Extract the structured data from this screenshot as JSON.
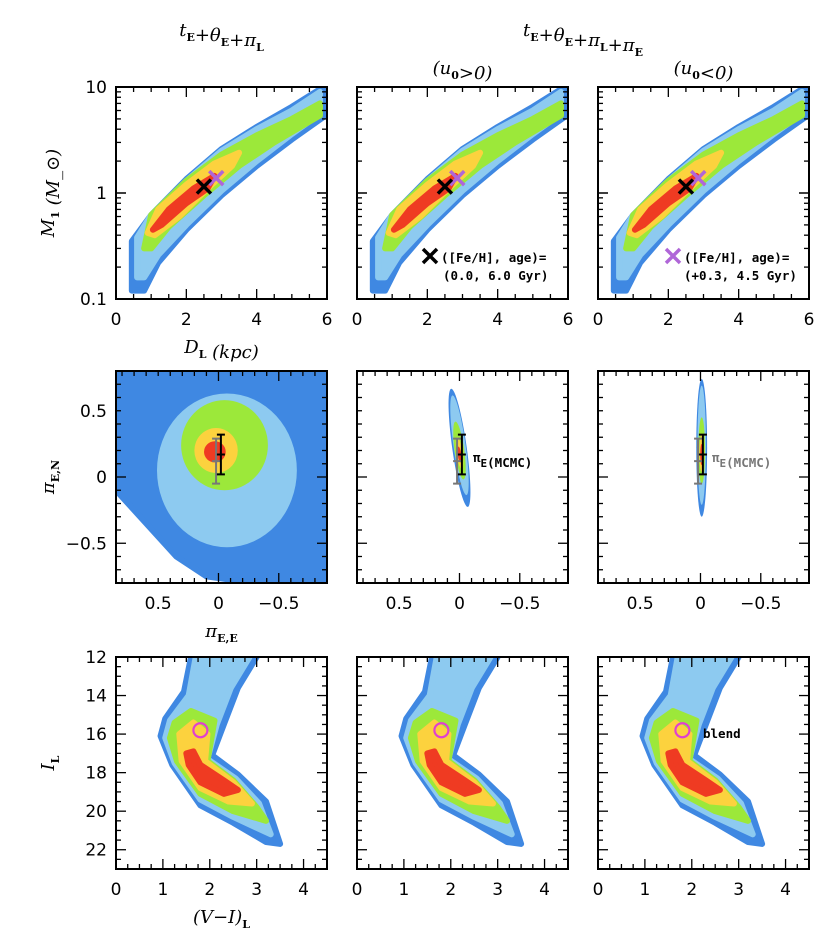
{
  "chart_data": {
    "type": "scatter",
    "colors": {
      "outer": "#3f88e2",
      "light": "#8dcaf0",
      "green": "#9ce83a",
      "yellow": "#fcd23e",
      "red": "#ef3b22",
      "black_marker": "#000000",
      "purple_marker": "#b066d8",
      "gray": "#777777",
      "blend_circle": "#e040d0"
    },
    "column_titles": [
      "t_E+θ_E+π_L",
      "t_E+θ_E+π_L+π_E"
    ],
    "column_subtitles": [
      "(u_0>0)",
      "(u_0<0)"
    ],
    "rows": [
      {
        "xlabel": "D_L (kpc)",
        "ylabel": "M_1 (M_⊙)",
        "xlim": [
          0,
          6
        ],
        "ylim": [
          0.1,
          10
        ],
        "yscale": "log",
        "xticks": [
          "0",
          "2",
          "4",
          "6"
        ],
        "yticks": [
          "0.1",
          "1",
          "10"
        ]
      },
      {
        "xlabel": "π_E,E",
        "ylabel": "π_E,N",
        "xlim": [
          0.85,
          -0.9
        ],
        "ylim": [
          -0.8,
          0.8
        ],
        "xticks": [
          "0.5",
          "0",
          "−0.5"
        ],
        "yticks": [
          "−0.5",
          "0",
          "0.5"
        ]
      },
      {
        "xlabel": "(V−I)_L",
        "ylabel": "I_L",
        "xlim": [
          0,
          4.5
        ],
        "ylim": [
          23,
          12
        ],
        "xticks": [
          "0",
          "1",
          "2",
          "3",
          "4"
        ],
        "yticks": [
          "12",
          "14",
          "16",
          "18",
          "20",
          "22"
        ]
      }
    ],
    "markers": {
      "solar_model": {
        "x": 2.5,
        "y": 1.15,
        "label": "([Fe/H], age)=",
        "value": "(0.0, 6.0 Gyr)"
      },
      "metal_rich_model": {
        "x": 2.85,
        "y": 1.38,
        "label": "([Fe/H], age)=",
        "value": "(+0.3, 4.5 Gyr)"
      },
      "pi_E_mcmc": {
        "x": -0.02,
        "y": 0.17,
        "ylow": 0.02,
        "yhigh": 0.32,
        "label": "π_E(MCMC)"
      },
      "pi_E_mcmc_alt": {
        "x": 0.02,
        "y": 0.12,
        "ylow": -0.05,
        "yhigh": 0.29
      },
      "blend": {
        "x": 1.8,
        "y": 15.8,
        "label": "blend"
      }
    }
  }
}
